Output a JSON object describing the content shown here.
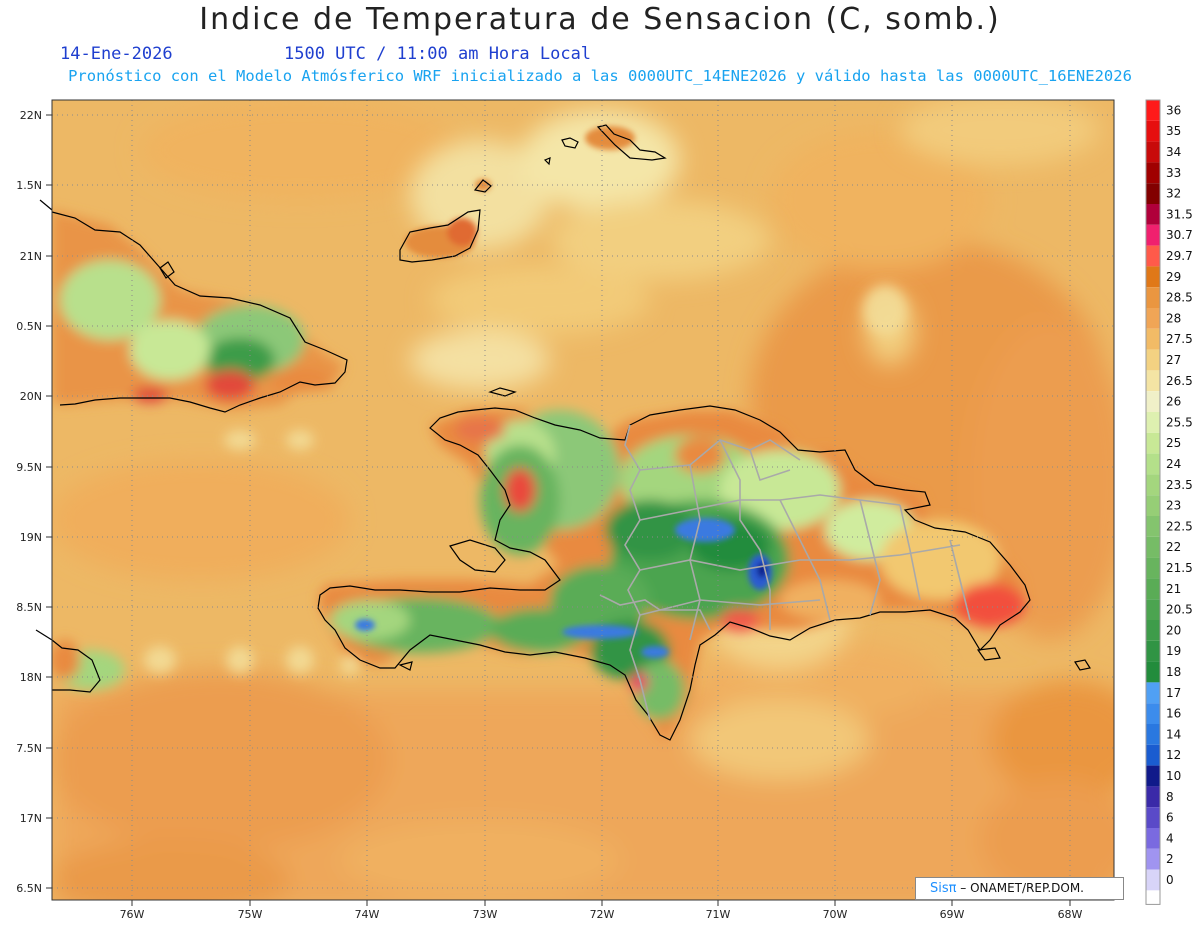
{
  "header": {
    "title": "Indice de Temperatura de Sensacion (C, somb.)",
    "date": "14-Ene-2026",
    "time": "1500 UTC / 11:00 am Hora Local",
    "subtitle": "Pronóstico con el Modelo Atmósferico WRF inicializado a las 0000UTC_14ENE2026 y válido hasta las  0000UTC_16ENE2026"
  },
  "axes": {
    "lat_labels": [
      "22N",
      "1.5N",
      "21N",
      "0.5N",
      "20N",
      "9.5N",
      "19N",
      "8.5N",
      "18N",
      "7.5N",
      "17N",
      "6.5N"
    ],
    "lon_labels": [
      "76W",
      "75W",
      "74W",
      "73W",
      "72W",
      "71W",
      "70W",
      "69W",
      "68W"
    ]
  },
  "colorbar": {
    "labels": [
      "36",
      "35",
      "34",
      "33",
      "32",
      "31.5",
      "30.7",
      "29.7",
      "29",
      "28.5",
      "28",
      "27.5",
      "27",
      "26.5",
      "26",
      "25.5",
      "25",
      "24",
      "23.5",
      "23",
      "22.5",
      "22",
      "21.5",
      "21",
      "20.5",
      "20",
      "19",
      "18",
      "17",
      "16",
      "14",
      "12",
      "10",
      "8",
      "6",
      "4",
      "2",
      "0"
    ],
    "colors": [
      "#ff1a1a",
      "#e60f0f",
      "#c80a0a",
      "#a00000",
      "#820000",
      "#b0003a",
      "#f0206e",
      "#ff5a4a",
      "#e07818",
      "#ea9640",
      "#f0a556",
      "#f2bb66",
      "#f3d282",
      "#f4e4a4",
      "#f0f0c8",
      "#def0b0",
      "#c8e896",
      "#b4e08a",
      "#a4d67e",
      "#96ce76",
      "#84c46e",
      "#76bc66",
      "#68b45e",
      "#5aac56",
      "#4ca450",
      "#3e9c4a",
      "#309444",
      "#228c3c",
      "#50a0f4",
      "#3c8cec",
      "#2a78e0",
      "#1a5cd0",
      "#101a8a",
      "#3a2aa8",
      "#5a4ac8",
      "#7a6ae0",
      "#a094f0",
      "#d8d4f8"
    ]
  },
  "credit": {
    "logo": "Sisπ",
    "text": " – ONAMET/REP.DOM."
  }
}
